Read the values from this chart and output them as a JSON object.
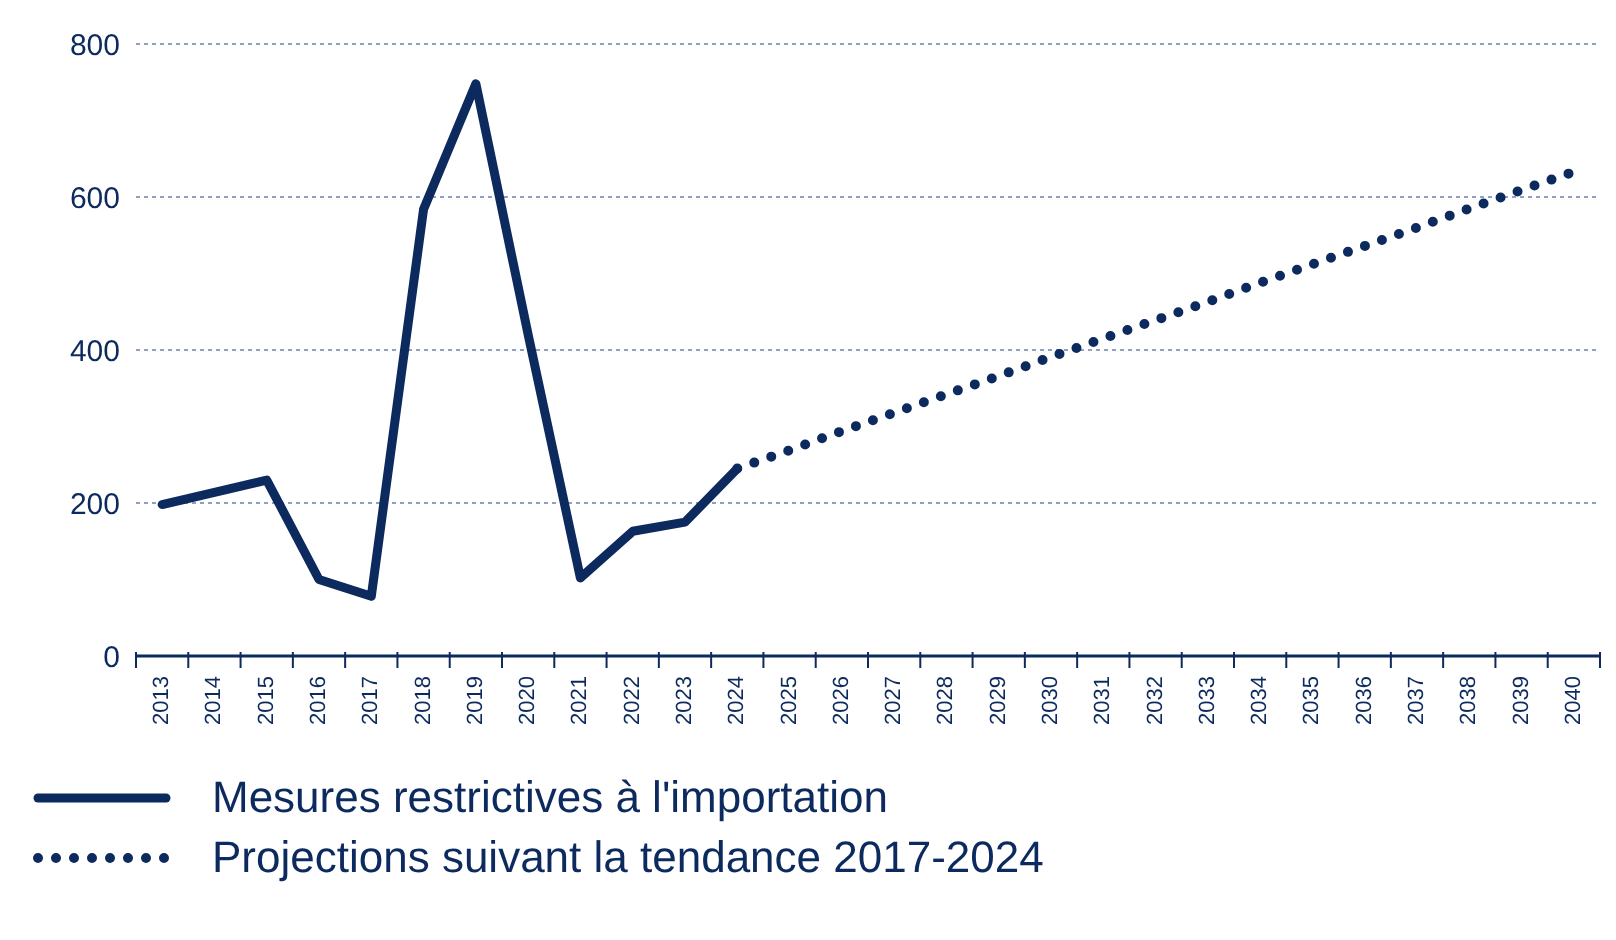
{
  "chart_data": {
    "type": "line",
    "categories": [
      "2013",
      "2014",
      "2015",
      "2016",
      "2017",
      "2018",
      "2019",
      "2020",
      "2021",
      "2022",
      "2023",
      "2024",
      "2025",
      "2026",
      "2027",
      "2028",
      "2029",
      "2030",
      "2031",
      "2032",
      "2033",
      "2034",
      "2035",
      "2036",
      "2037",
      "2038",
      "2039",
      "2040"
    ],
    "series": [
      {
        "name": "Mesures restrictives à l'importation",
        "color": "#0d2a5e",
        "line_style": "solid",
        "values": [
          198,
          214,
          230,
          100,
          78,
          584,
          748,
          420,
          102,
          163,
          175,
          245,
          null,
          null,
          null,
          null,
          null,
          null,
          null,
          null,
          null,
          null,
          null,
          null,
          null,
          null,
          null,
          null
        ]
      },
      {
        "name": "Projections suivant la tendance 2017-2024",
        "color": "#0d2a5e",
        "line_style": "dotted",
        "values": [
          null,
          null,
          null,
          null,
          null,
          null,
          null,
          null,
          null,
          null,
          null,
          245,
          269,
          294,
          318,
          342,
          366,
          391,
          415,
          439,
          463,
          488,
          512,
          536,
          560,
          585,
          609,
          633
        ]
      }
    ],
    "ylim": [
      0,
      800
    ],
    "yticks": [
      0,
      200,
      400,
      600,
      800
    ],
    "grid": "y",
    "legend": "bottom",
    "marker": "none"
  }
}
